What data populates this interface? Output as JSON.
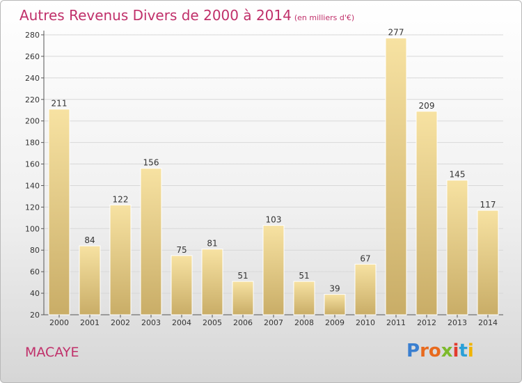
{
  "header": {
    "title": "Autres Revenus Divers de 2000 à 2014",
    "subtitle": "(en milliers d'€)"
  },
  "footer": {
    "town": "MACAYE",
    "logo_text": "Proxiti",
    "logo_colors": [
      "#3a7fd0",
      "#e86a1e",
      "#e86a1e",
      "#7dba2c",
      "#e23b2e",
      "#2aa0d8",
      "#f0b400"
    ]
  },
  "colors": {
    "title": "#c0306a",
    "bar_light": "#f7e2a2",
    "bar_dark": "#c9ad67",
    "grid": "#d8d8d8"
  },
  "chart_data": {
    "type": "bar",
    "categories": [
      "2000",
      "2001",
      "2002",
      "2003",
      "2004",
      "2005",
      "2006",
      "2007",
      "2008",
      "2009",
      "2010",
      "2011",
      "2012",
      "2013",
      "2014"
    ],
    "values": [
      211,
      84,
      122,
      156,
      75,
      81,
      51,
      103,
      51,
      39,
      67,
      277,
      209,
      145,
      117
    ],
    "ylim": [
      20,
      280
    ],
    "yticks": [
      20,
      40,
      60,
      80,
      100,
      120,
      140,
      160,
      180,
      200,
      220,
      240,
      260,
      280
    ],
    "grid": true,
    "data_labels": true
  }
}
